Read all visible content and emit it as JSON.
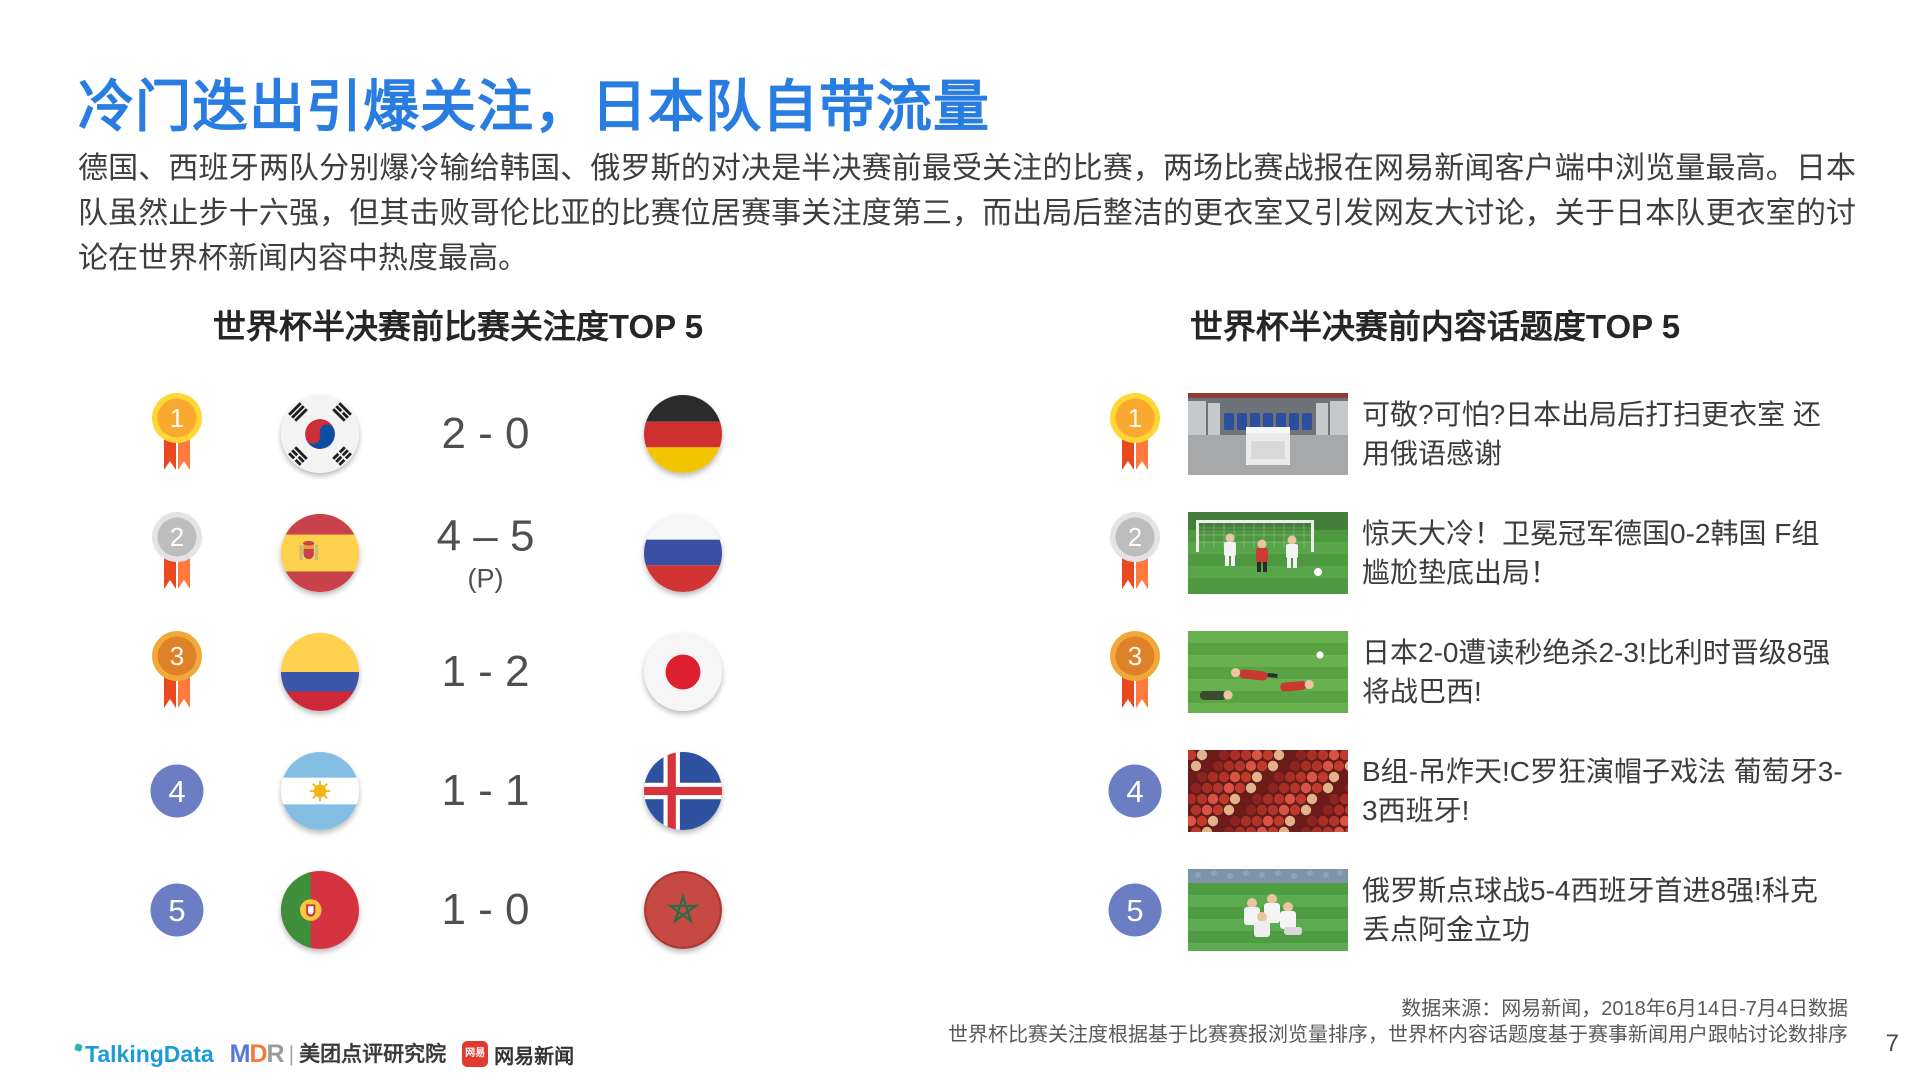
{
  "slide": {
    "title": "冷门迭出引爆关注，日本队自带流量",
    "paragraph": "德国、西班牙两队分别爆冷输给韩国、俄罗斯的对决是半决赛前最受关注的比赛，两场比赛战报在网易新闻客户端中浏览量最高。日本队虽然止步十六强，但其击败哥伦比亚的比赛位居赛事关注度第三，而出局后整洁的更衣室又引发网友大讨论，关于日本队更衣室的讨论在世界杯新闻内容中热度最高。"
  },
  "left_panel": {
    "heading": "世界杯半决赛前比赛关注度TOP 5",
    "rows": [
      {
        "rank": "1",
        "badge": "gold",
        "home_flag": "south-korea",
        "score": "2 - 0",
        "penalty": "",
        "away_flag": "germany"
      },
      {
        "rank": "2",
        "badge": "silver",
        "home_flag": "spain",
        "score": "4 – 5",
        "penalty": "(P)",
        "away_flag": "russia"
      },
      {
        "rank": "3",
        "badge": "bronze",
        "home_flag": "colombia",
        "score": "1 - 2",
        "penalty": "",
        "away_flag": "japan"
      },
      {
        "rank": "4",
        "badge": "plain",
        "home_flag": "argentina",
        "score": "1 - 1",
        "penalty": "",
        "away_flag": "iceland"
      },
      {
        "rank": "5",
        "badge": "plain",
        "home_flag": "portugal",
        "score": "1 - 0",
        "penalty": "",
        "away_flag": "morocco"
      }
    ]
  },
  "right_panel": {
    "heading": "世界杯半决赛前内容话题度TOP 5",
    "rows": [
      {
        "rank": "1",
        "badge": "gold",
        "thumbnail": "locker-room",
        "headline": "可敬?可怕?日本出局后打扫更衣室 还用俄语感谢"
      },
      {
        "rank": "2",
        "badge": "silver",
        "thumbnail": "goal-scene",
        "headline": "惊天大冷！卫冕冠军德国0-2韩国 F组尴尬垫底出局！"
      },
      {
        "rank": "3",
        "badge": "bronze",
        "thumbnail": "pitch-players",
        "headline": "日本2-0遭读秒绝杀2-3!比利时晋级8强将战巴西!"
      },
      {
        "rank": "4",
        "badge": "plain",
        "thumbnail": "fans-crowd",
        "headline": "B组-吊炸天!C罗狂演帽子戏法 葡萄牙3-3西班牙!"
      },
      {
        "rank": "5",
        "badge": "plain",
        "thumbnail": "celebration",
        "headline": "俄罗斯点球战5-4西班牙首进8强!科克丢点阿金立功"
      }
    ]
  },
  "footer": {
    "source_line1": "数据来源：网易新闻，2018年6月14日-7月4日数据",
    "source_line2": "世界杯比赛关注度根据基于比赛赛报浏览量排序，世界杯内容话题度基于赛事新闻用户跟帖讨论数排序",
    "page_number": "7"
  },
  "logos": {
    "talkingdata": "TalkingData",
    "mdr_m": "M",
    "mdr_d": "D",
    "mdr_r": "R",
    "divider": "|",
    "mdr_suffix": "美团点评研究院",
    "netease_badge": "网易",
    "netease": "网易新闻"
  },
  "colors": {
    "title_blue": "#2A7DE0",
    "rank_circle_blue": "#6B7EC3",
    "medal_gold": "#F9A92F",
    "medal_silver": "#BDBDBD",
    "medal_bronze": "#DF8128",
    "ribbon_orange": "#F1582B",
    "body_text": "#3E3E3E"
  }
}
